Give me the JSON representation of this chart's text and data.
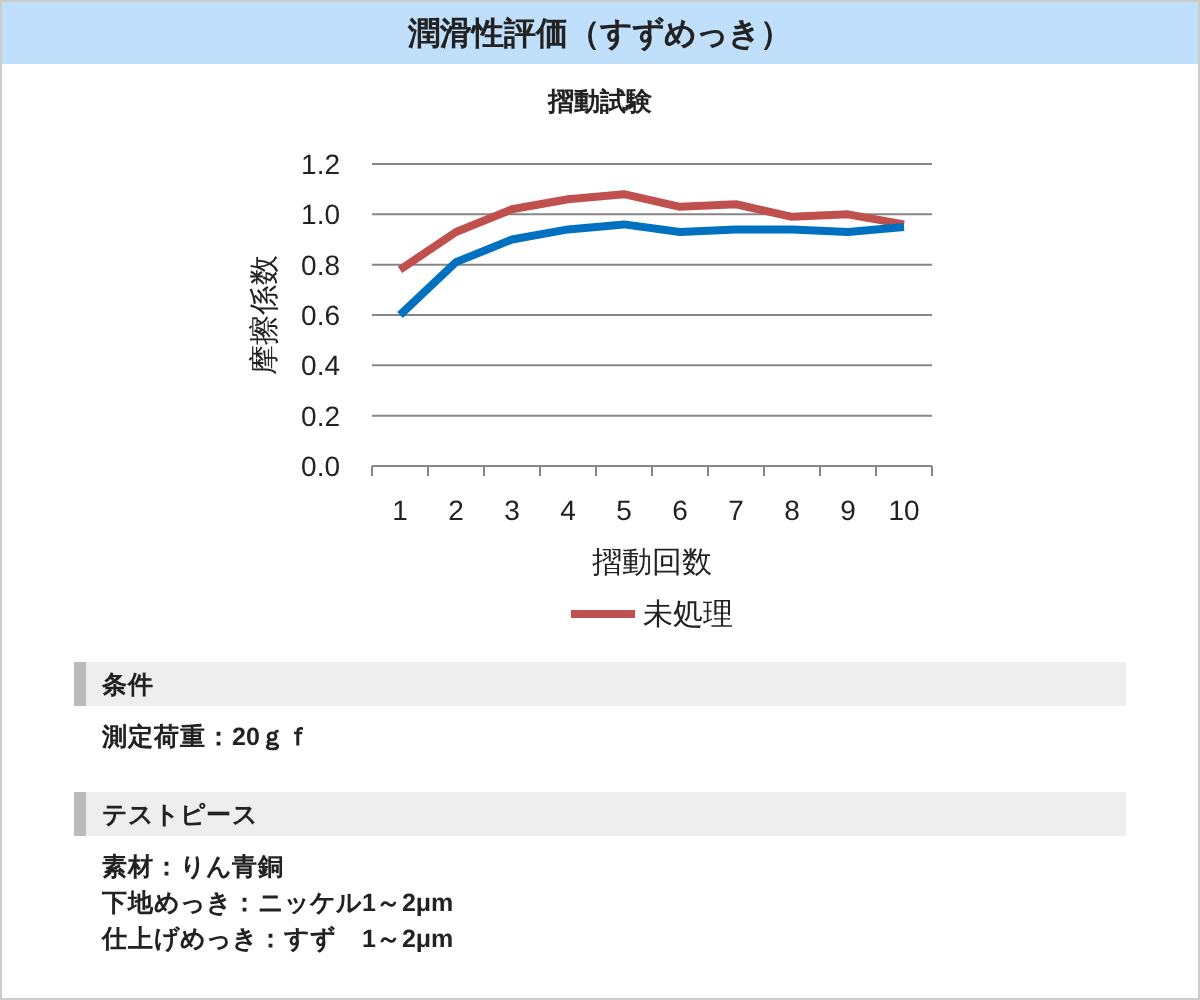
{
  "chart_data": [
    {
      "type": "line",
      "title": "潤滑性評価（すずめっき）",
      "subtitle": "摺動試験",
      "xlabel": "摺動回数",
      "ylabel": "摩擦係数",
      "categories": [
        "1",
        "2",
        "3",
        "4",
        "5",
        "6",
        "7",
        "8",
        "9",
        "10"
      ],
      "series": [
        {
          "name": "未処理",
          "color": "#c0504d",
          "values": [
            0.78,
            0.93,
            1.02,
            1.06,
            1.08,
            1.03,
            1.04,
            0.99,
            1.0,
            0.96
          ]
        },
        {
          "color": "#0070c0",
          "values": [
            0.6,
            0.81,
            0.9,
            0.94,
            0.96,
            0.93,
            0.94,
            0.94,
            0.93,
            0.95
          ]
        }
      ],
      "ylim": [
        0,
        1.2
      ],
      "yticks": [
        {
          "value": 0,
          "label": "0.0"
        },
        0.2,
        0.4,
        0.6,
        0.8,
        {
          "value": 1,
          "label": "1.0"
        },
        1.2
      ],
      "grid": "y",
      "legend": "bottom"
    },
    {
      "type": "other",
      "title": "条件",
      "annotations": [
        "測定荷重：20ｇｆ"
      ]
    },
    {
      "type": "other",
      "title": "テストピース",
      "annotations": [
        "素材：りん青銅",
        "下地めっき：ニッケル1～2μm",
        "仕上げめっき：すず　1～2μm"
      ]
    }
  ]
}
